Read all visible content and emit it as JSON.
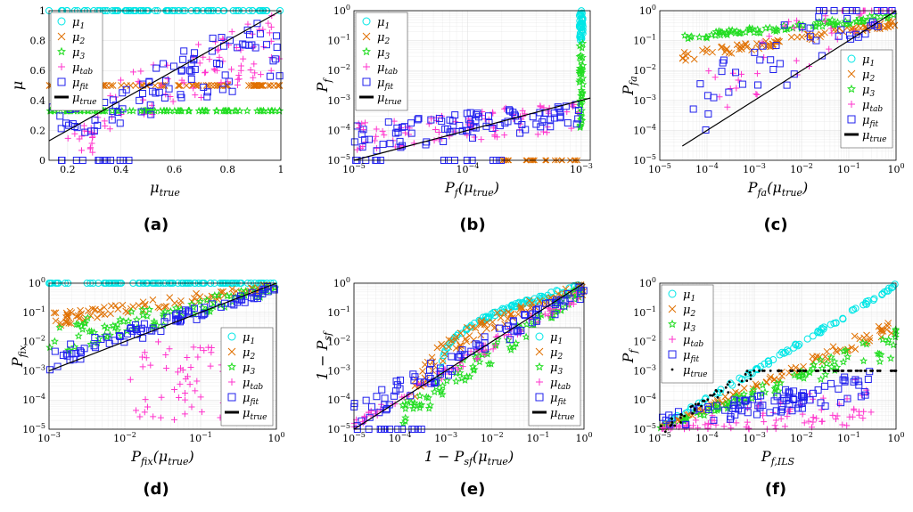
{
  "figure": {
    "colors": {
      "mu1": "#00e6e6",
      "mu2": "#e07000",
      "mu3": "#22dd22",
      "mutab": "#ff33cc",
      "mufit": "#2020ee",
      "mutrue": "#000000"
    }
  },
  "chart_data": [
    {
      "id": "a",
      "type": "scatter",
      "caption": "(a)",
      "xscale": "linear",
      "yscale": "linear",
      "xlim": [
        0.13,
        1.0
      ],
      "ylim": [
        0,
        1.0
      ],
      "xticks": [
        0.2,
        0.4,
        0.6,
        0.8,
        1
      ],
      "xticklabels": [
        "0.2",
        "0.4",
        "0.6",
        "0.8",
        "1"
      ],
      "yticks": [
        0,
        0.2,
        0.4,
        0.6,
        0.8,
        1
      ],
      "yticklabels": [
        "0",
        "0.2",
        "0.4",
        "0.6",
        "0.8",
        "1"
      ],
      "xlabel": "μ",
      "xlabel_sub": "true",
      "ylabel": "μ",
      "ylabel_sub": "",
      "legend": {
        "placement": "top-left",
        "markers": [
          "o",
          "x",
          "*",
          "+",
          "s",
          "line"
        ],
        "entries": [
          {
            "base": "μ",
            "sub": "1"
          },
          {
            "base": "μ",
            "sub": "2"
          },
          {
            "base": "μ",
            "sub": "3"
          },
          {
            "base": "μ",
            "sub": "tab"
          },
          {
            "base": "μ",
            "sub": "fit"
          },
          {
            "base": "μ",
            "sub": "true"
          }
        ]
      },
      "series": [
        {
          "name": "μ1",
          "pattern": "flat_top",
          "y": 1.0
        },
        {
          "name": "μ2",
          "pattern": "flat",
          "y": 0.5
        },
        {
          "name": "μ3",
          "pattern": "flat",
          "y": 0.33
        },
        {
          "name": "μtab",
          "pattern": "band",
          "x_range": [
            0.2,
            1.0
          ],
          "y_start": [
            0.1,
            0.45
          ],
          "y_end": [
            0.6,
            1.0
          ],
          "extra": "low_cluster"
        },
        {
          "name": "μfit",
          "pattern": "band",
          "x_range": [
            0.13,
            1.0
          ],
          "y_start": [
            0.1,
            0.4
          ],
          "y_end": [
            0.55,
            1.0
          ],
          "extra": "zero_row"
        },
        {
          "name": "μtrue",
          "pattern": "identity_line"
        }
      ]
    },
    {
      "id": "b",
      "type": "scatter",
      "caption": "(b)",
      "xscale": "log",
      "yscale": "log",
      "xlim": [
        1e-05,
        0.0012
      ],
      "ylim": [
        1e-05,
        1
      ],
      "xticks": [
        1e-05,
        0.0001,
        0.001
      ],
      "xticklabels": [
        "10^-5",
        "10^-4",
        "10^-3"
      ],
      "yticks": [
        1e-05,
        0.0001,
        0.001,
        0.01,
        0.1,
        1
      ],
      "yticklabels": [
        "10^-5",
        "10^-4",
        "10^-3",
        "10^-2",
        "10^-1",
        "10^0"
      ],
      "xlabel": "P",
      "xlabel_sub": "f",
      "xlabel_tail": "(μ",
      "xlabel_tail_sub": "true",
      "xlabel_close": ")",
      "ylabel": "P",
      "ylabel_sub": "f",
      "legend": {
        "placement": "top-left",
        "markers": [
          "o",
          "x",
          "*",
          "+",
          "s",
          "line"
        ],
        "entries": [
          {
            "base": "μ",
            "sub": "1"
          },
          {
            "base": "μ",
            "sub": "2"
          },
          {
            "base": "μ",
            "sub": "3"
          },
          {
            "base": "μ",
            "sub": "tab"
          },
          {
            "base": "μ",
            "sub": "fit"
          },
          {
            "base": "μ",
            "sub": "true"
          }
        ]
      },
      "series": [
        {
          "name": "μ1",
          "pattern": "vertical",
          "x": 0.001,
          "y_range": [
            0.1,
            1
          ]
        },
        {
          "name": "μ2",
          "pattern": "floor",
          "x_range": [
            0.0002,
            0.001
          ],
          "y": 1e-05
        },
        {
          "name": "μ3",
          "pattern": "vertical",
          "x": 0.001,
          "y_range": [
            0.0001,
            0.1
          ]
        },
        {
          "name": "μtab",
          "pattern": "band_log",
          "x_range": [
            1e-05,
            0.001
          ],
          "y_start": [
            2e-05,
            0.0002
          ],
          "y_end": [
            0.0001,
            0.001
          ]
        },
        {
          "name": "μfit",
          "pattern": "band_log",
          "x_range": [
            1e-05,
            0.001
          ],
          "y_start": [
            1.5e-05,
            0.00015
          ],
          "y_end": [
            0.00015,
            0.001
          ],
          "extra": "floor_row"
        },
        {
          "name": "μtrue",
          "pattern": "identity_line"
        }
      ]
    },
    {
      "id": "c",
      "type": "scatter",
      "caption": "(c)",
      "xscale": "log",
      "yscale": "log",
      "xlim": [
        1e-05,
        1
      ],
      "ylim": [
        1e-05,
        1
      ],
      "xticks": [
        1e-05,
        0.0001,
        0.001,
        0.01,
        0.1,
        1
      ],
      "xticklabels": [
        "10^-5",
        "10^-4",
        "10^-3",
        "10^-2",
        "10^-1",
        "10^0"
      ],
      "yticks": [
        1e-05,
        0.0001,
        0.001,
        0.01,
        0.1,
        1
      ],
      "yticklabels": [
        "10^-5",
        "10^-4",
        "10^-3",
        "10^-2",
        "10^-1",
        "10^0"
      ],
      "xlabel": "P",
      "xlabel_sub": "fa",
      "xlabel_tail": "(μ",
      "xlabel_tail_sub": "true",
      "xlabel_close": ")",
      "ylabel": "P",
      "ylabel_sub": "fa",
      "legend": {
        "placement": "middle-right",
        "markers": [
          "o",
          "x",
          "*",
          "+",
          "s",
          "line"
        ],
        "entries": [
          {
            "base": "μ",
            "sub": "1"
          },
          {
            "base": "μ",
            "sub": "2"
          },
          {
            "base": "μ",
            "sub": "3"
          },
          {
            "base": "μ",
            "sub": "tab"
          },
          {
            "base": "μ",
            "sub": "fit"
          },
          {
            "base": "μ",
            "sub": "true"
          }
        ]
      },
      "series": [
        {
          "name": "μ1",
          "pattern": "none"
        },
        {
          "name": "μ2",
          "pattern": "curve",
          "x_range": [
            3e-05,
            1
          ],
          "y_start": [
            0.02,
            0.04
          ],
          "y_end": [
            0.3,
            0.5
          ]
        },
        {
          "name": "μ3",
          "pattern": "curve",
          "x_range": [
            3e-05,
            1
          ],
          "y_start": [
            0.1,
            0.16
          ],
          "y_end": [
            0.5,
            0.8
          ]
        },
        {
          "name": "μtab",
          "pattern": "cloud",
          "x_range": [
            5e-05,
            1
          ],
          "below_line": true
        },
        {
          "name": "μfit",
          "pattern": "cloud",
          "x_range": [
            5e-05,
            1
          ],
          "below_line": true
        },
        {
          "name": "μtrue",
          "pattern": "identity_line",
          "x_range": [
            3e-05,
            1
          ]
        }
      ]
    },
    {
      "id": "d",
      "type": "scatter",
      "caption": "(d)",
      "xscale": "log",
      "yscale": "log",
      "xlim": [
        0.001,
        1
      ],
      "ylim": [
        1e-05,
        1
      ],
      "xticks": [
        0.001,
        0.01,
        0.1,
        1
      ],
      "xticklabels": [
        "10^-3",
        "10^-2",
        "10^-1",
        "10^0"
      ],
      "yticks": [
        1e-05,
        0.0001,
        0.001,
        0.01,
        0.1,
        1
      ],
      "yticklabels": [
        "10^-5",
        "10^-4",
        "10^-3",
        "10^-2",
        "10^-1",
        "10^0"
      ],
      "xlabel": "P",
      "xlabel_sub": "fix",
      "xlabel_tail": "(μ",
      "xlabel_tail_sub": "true",
      "xlabel_close": ")",
      "ylabel": "P",
      "ylabel_sub": "fix",
      "legend": {
        "placement": "bottom-right",
        "markers": [
          "o",
          "x",
          "*",
          "+",
          "s",
          "line"
        ],
        "entries": [
          {
            "base": "μ",
            "sub": "1"
          },
          {
            "base": "μ",
            "sub": "2"
          },
          {
            "base": "μ",
            "sub": "3"
          },
          {
            "base": "μ",
            "sub": "tab"
          },
          {
            "base": "μ",
            "sub": "fit"
          },
          {
            "base": "μ",
            "sub": "true"
          }
        ]
      },
      "series": [
        {
          "name": "μ1",
          "pattern": "flat_top",
          "y": 1.0
        },
        {
          "name": "μ2",
          "pattern": "curve",
          "x_range": [
            0.001,
            1
          ],
          "y_start": [
            0.03,
            0.1
          ],
          "y_end": [
            0.6,
            1
          ]
        },
        {
          "name": "μ3",
          "pattern": "curve",
          "x_range": [
            0.001,
            1
          ],
          "y_start": [
            0.003,
            0.04
          ],
          "y_end": [
            0.4,
            0.9
          ]
        },
        {
          "name": "μtab",
          "pattern": "cloud",
          "x_range": [
            0.01,
            0.2
          ],
          "y_range": [
            2e-05,
            0.01
          ]
        },
        {
          "name": "μfit",
          "pattern": "band_log",
          "x_range": [
            0.001,
            1
          ],
          "y_start": [
            0.001,
            0.005
          ],
          "y_end": [
            0.5,
            1
          ]
        },
        {
          "name": "μtrue",
          "pattern": "identity_line"
        }
      ]
    },
    {
      "id": "e",
      "type": "scatter",
      "caption": "(e)",
      "xscale": "log",
      "yscale": "log",
      "xlim": [
        1e-05,
        1
      ],
      "ylim": [
        1e-05,
        1
      ],
      "xticks": [
        1e-05,
        0.0001,
        0.001,
        0.01,
        0.1,
        1
      ],
      "xticklabels": [
        "10^-5",
        "10^-4",
        "10^-3",
        "10^-2",
        "10^-1",
        "10^0"
      ],
      "yticks": [
        1e-05,
        0.0001,
        0.001,
        0.01,
        0.1,
        1
      ],
      "yticklabels": [
        "10^-5",
        "10^-4",
        "10^-3",
        "10^-2",
        "10^-1",
        "10^0"
      ],
      "xlabel": "1 − P",
      "xlabel_sub": "sf",
      "xlabel_tail": "(μ",
      "xlabel_tail_sub": "true",
      "xlabel_close": ")",
      "ylabel": "1 − P",
      "ylabel_sub": "sf",
      "legend": {
        "placement": "bottom-right",
        "markers": [
          "o",
          "x",
          "*",
          "+",
          "s",
          "line"
        ],
        "entries": [
          {
            "base": "μ",
            "sub": "1"
          },
          {
            "base": "μ",
            "sub": "2"
          },
          {
            "base": "μ",
            "sub": "3"
          },
          {
            "base": "μ",
            "sub": "tab"
          },
          {
            "base": "μ",
            "sub": "fit"
          },
          {
            "base": "μ",
            "sub": "true"
          }
        ]
      },
      "series": [
        {
          "name": "μ1",
          "pattern": "sigmoid",
          "x_range": [
            0.0008,
            1
          ],
          "y_start": [
            0.001,
            0.001
          ],
          "y_end": [
            0.6,
            1
          ]
        },
        {
          "name": "μ2",
          "pattern": "sigmoid",
          "x_range": [
            0.0002,
            1
          ],
          "y_start": [
            1e-05,
            0.0001
          ],
          "y_end": [
            0.4,
            1
          ]
        },
        {
          "name": "μ3",
          "pattern": "band_log",
          "x_range": [
            0.0001,
            1
          ],
          "y_start": [
            1e-05,
            0.0001
          ],
          "y_end": [
            0.3,
            1
          ]
        },
        {
          "name": "μtab",
          "pattern": "band_log",
          "x_range": [
            1e-05,
            1
          ],
          "y_start": [
            1e-05,
            2e-05
          ],
          "y_end": [
            0.3,
            1
          ]
        },
        {
          "name": "μfit",
          "pattern": "band_log",
          "x_range": [
            1e-05,
            1
          ],
          "y_start": [
            1e-05,
            8e-05
          ],
          "y_end": [
            0.3,
            1
          ],
          "extra": "floor_row"
        },
        {
          "name": "μtrue",
          "pattern": "identity_line"
        }
      ]
    },
    {
      "id": "f",
      "type": "scatter",
      "caption": "(f)",
      "xscale": "log",
      "yscale": "log",
      "xlim": [
        1e-05,
        1
      ],
      "ylim": [
        1e-05,
        1
      ],
      "xticks": [
        1e-05,
        0.0001,
        0.001,
        0.01,
        0.1,
        1
      ],
      "xticklabels": [
        "10^-5",
        "10^-4",
        "10^-3",
        "10^-2",
        "10^-1",
        "10^0"
      ],
      "yticks": [
        1e-05,
        0.0001,
        0.001,
        0.01,
        0.1,
        1
      ],
      "yticklabels": [
        "10^-5",
        "10^-4",
        "10^-3",
        "10^-2",
        "10^-1",
        "10^0"
      ],
      "xlabel": "P",
      "xlabel_sub": "f,ILS",
      "ylabel": "P",
      "ylabel_sub": "f",
      "legend": {
        "placement": "top-left",
        "markers": [
          "o",
          "x",
          "*",
          "+",
          "s",
          "dot"
        ],
        "entries": [
          {
            "base": "μ",
            "sub": "1"
          },
          {
            "base": "μ",
            "sub": "2"
          },
          {
            "base": "μ",
            "sub": "3"
          },
          {
            "base": "μ",
            "sub": "tab"
          },
          {
            "base": "μ",
            "sub": "fit"
          },
          {
            "base": "μ",
            "sub": "true"
          }
        ]
      },
      "series": [
        {
          "name": "μ1",
          "pattern": "band_log",
          "x_range": [
            1e-05,
            1
          ],
          "y_start": [
            1e-05,
            1.3e-05
          ],
          "y_end": [
            0.7,
            1
          ]
        },
        {
          "name": "μ2",
          "pattern": "band_log",
          "x_range": [
            1e-05,
            1
          ],
          "y_start": [
            1e-05,
            1.2e-05
          ],
          "y_end": [
            0.02,
            0.07
          ]
        },
        {
          "name": "μ3",
          "pattern": "band_log",
          "x_range": [
            1e-05,
            1
          ],
          "y_start": [
            1e-05,
            1.1e-05
          ],
          "y_end": [
            0.003,
            0.03
          ]
        },
        {
          "name": "μtab",
          "pattern": "band_log",
          "x_range": [
            1e-05,
            0.3
          ],
          "y_start": [
            1e-05,
            1e-05
          ],
          "y_end": [
            1e-05,
            0.001
          ]
        },
        {
          "name": "μfit",
          "pattern": "band_log",
          "x_range": [
            1e-05,
            0.3
          ],
          "y_start": [
            1e-05,
            3e-05
          ],
          "y_end": [
            0.0001,
            0.001
          ]
        },
        {
          "name": "μtrue",
          "pattern": "clamped",
          "x_range": [
            1e-05,
            1
          ],
          "cap": 0.001
        }
      ]
    }
  ]
}
